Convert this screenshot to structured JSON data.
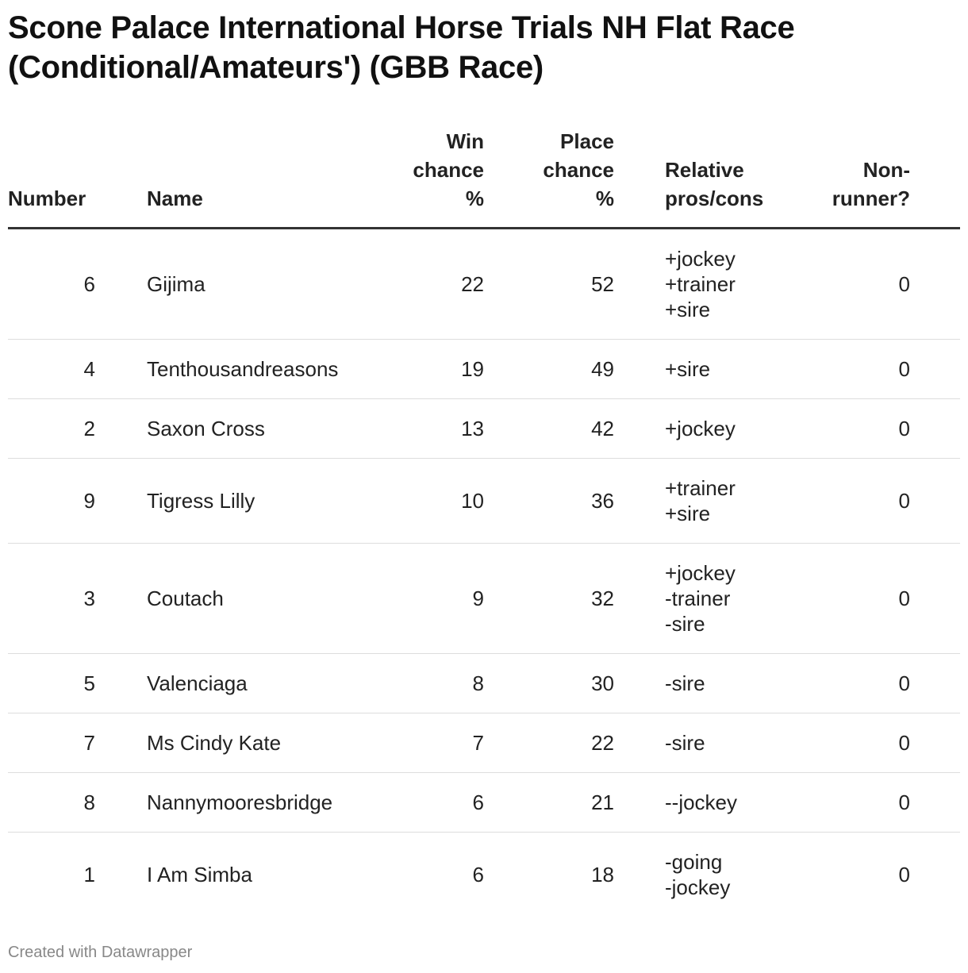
{
  "title": "Scone Palace International Horse Trials NH Flat Race (Conditional/Amateurs') (GBB Race)",
  "columns": [
    "Number",
    "Name",
    "Win chance %",
    "Place chance %",
    "Relative pros/cons",
    "Non-runner?"
  ],
  "header_lines": {
    "win": [
      "Win",
      "chance",
      "%"
    ],
    "place": [
      "Place",
      "chance",
      "%"
    ],
    "rel": [
      "Relative",
      "pros/cons"
    ],
    "nr": [
      "Non-",
      "runner?"
    ]
  },
  "rows": [
    {
      "number": "6",
      "name": "Gijima",
      "win": "22",
      "place": "52",
      "pros": [
        "+jockey",
        "+trainer",
        "+sire"
      ],
      "nr": "0"
    },
    {
      "number": "4",
      "name": "Tenthousandreasons",
      "win": "19",
      "place": "49",
      "pros": [
        "+sire"
      ],
      "nr": "0"
    },
    {
      "number": "2",
      "name": "Saxon Cross",
      "win": "13",
      "place": "42",
      "pros": [
        "+jockey"
      ],
      "nr": "0"
    },
    {
      "number": "9",
      "name": "Tigress Lilly",
      "win": "10",
      "place": "36",
      "pros": [
        "+trainer",
        "+sire"
      ],
      "nr": "0"
    },
    {
      "number": "3",
      "name": "Coutach",
      "win": "9",
      "place": "32",
      "pros": [
        "+jockey",
        "-trainer",
        "-sire"
      ],
      "nr": "0"
    },
    {
      "number": "5",
      "name": "Valenciaga",
      "win": "8",
      "place": "30",
      "pros": [
        "-sire"
      ],
      "nr": "0"
    },
    {
      "number": "7",
      "name": "Ms Cindy Kate",
      "win": "7",
      "place": "22",
      "pros": [
        "-sire"
      ],
      "nr": "0"
    },
    {
      "number": "8",
      "name": "Nannymooresbridge",
      "win": "6",
      "place": "21",
      "pros": [
        "--jockey"
      ],
      "nr": "0"
    },
    {
      "number": "1",
      "name": "I Am Simba",
      "win": "6",
      "place": "18",
      "pros": [
        "-going",
        "-jockey"
      ],
      "nr": "0"
    }
  ],
  "footer": "Created with Datawrapper"
}
